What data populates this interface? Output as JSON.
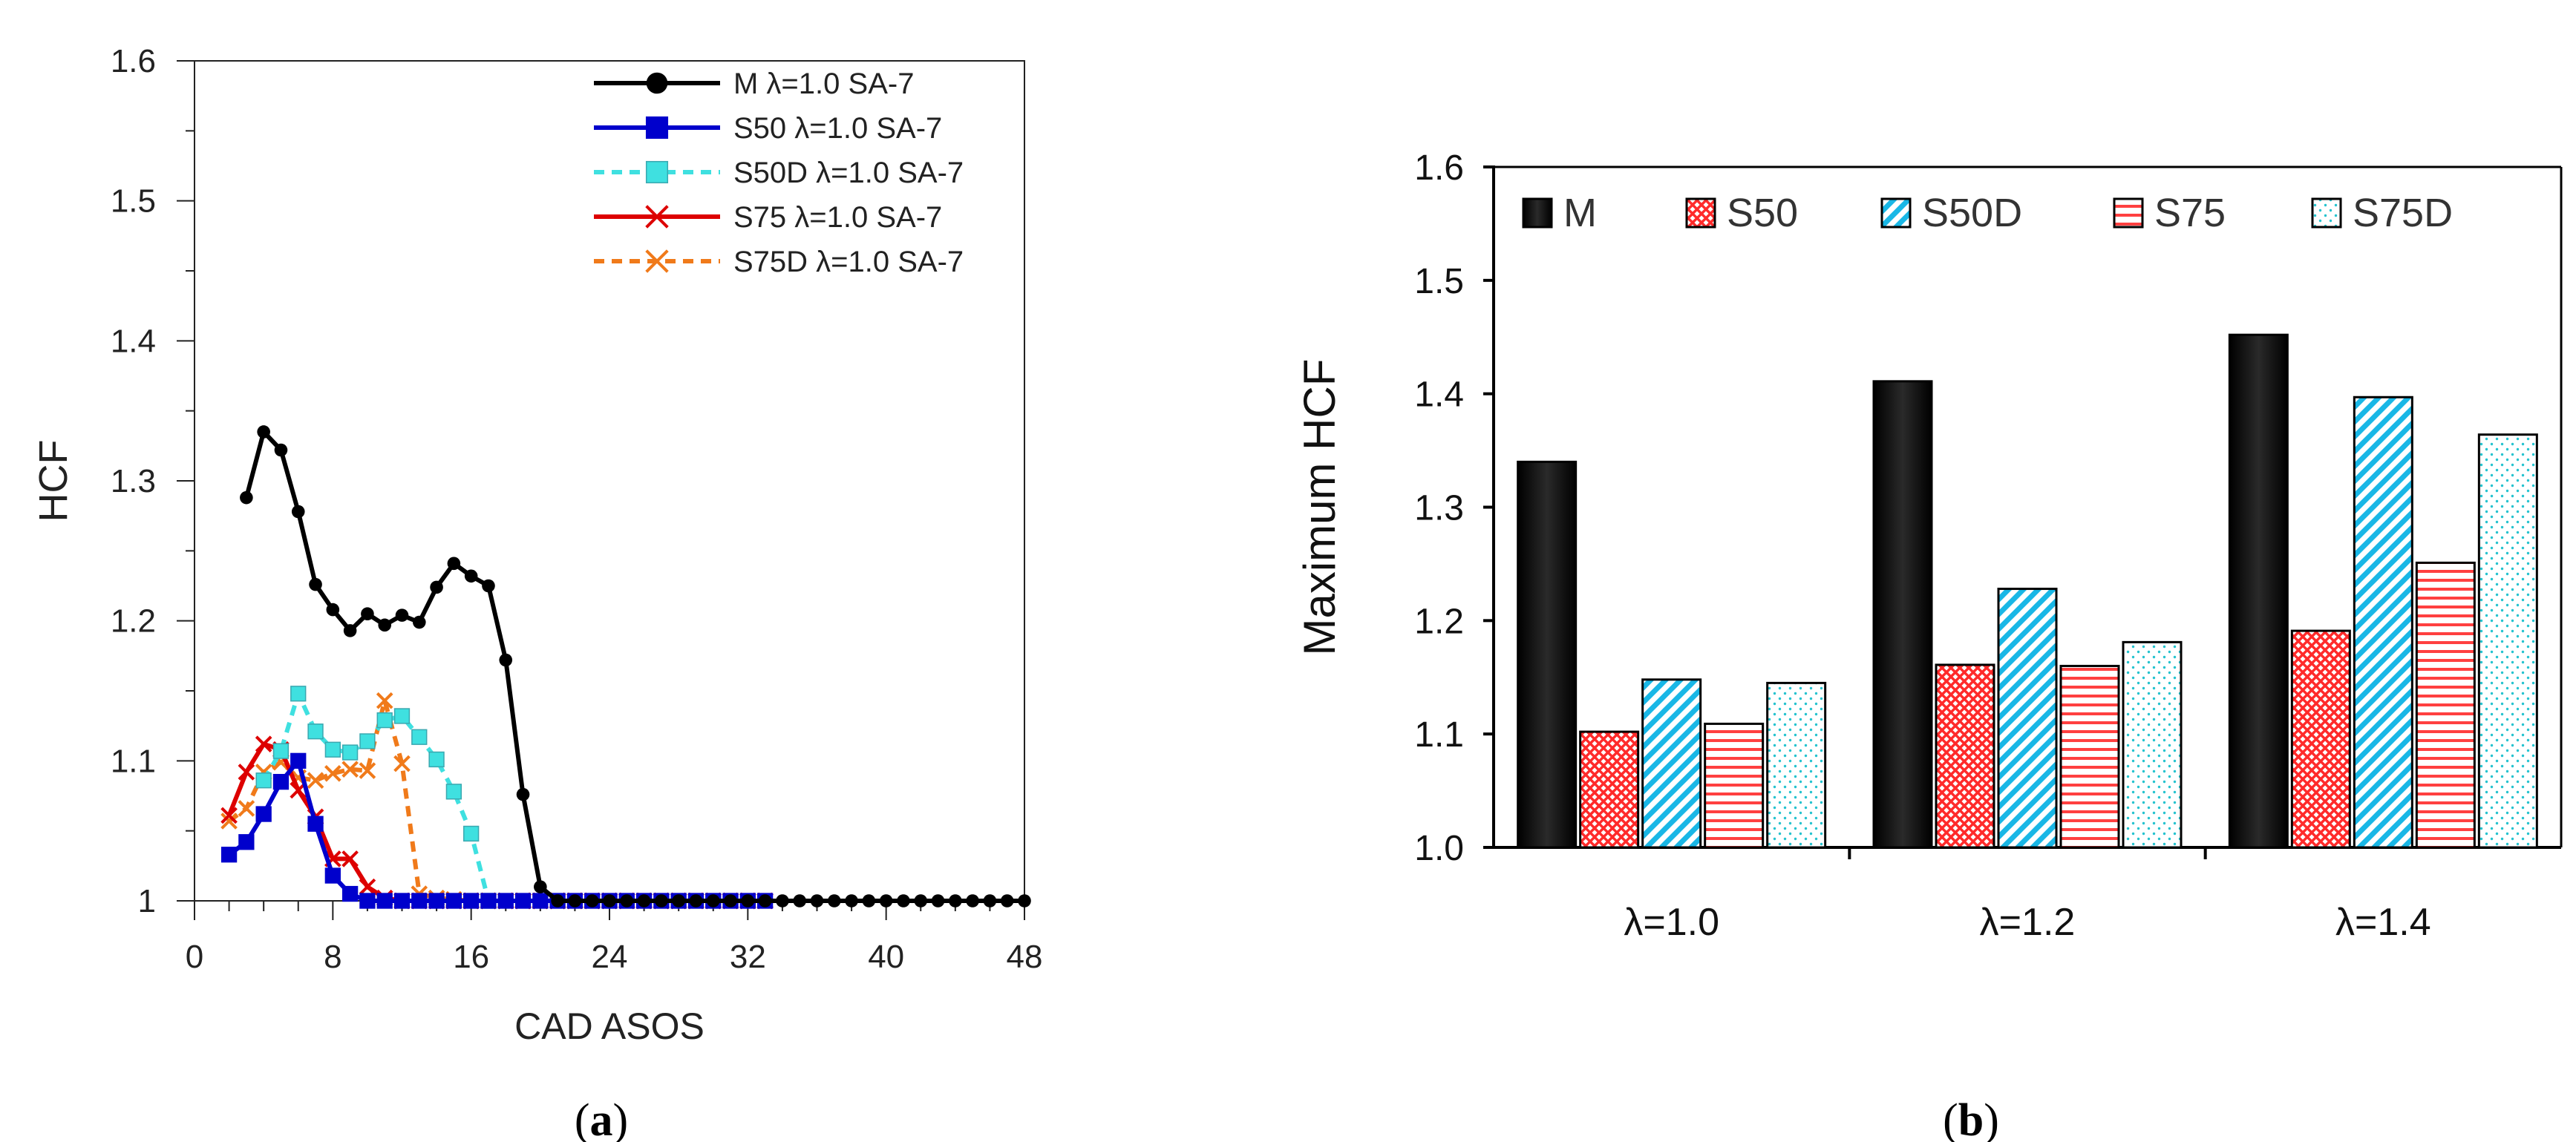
{
  "chart_data": [
    {
      "type": "line",
      "panel_label": "a",
      "xlabel": "CAD ASOS",
      "ylabel": "HCF",
      "xlim": [
        0,
        48
      ],
      "ylim": [
        1.0,
        1.6
      ],
      "xticks": [
        0,
        8,
        16,
        24,
        32,
        40,
        48
      ],
      "yticks": [
        1,
        1.1,
        1.2,
        1.3,
        1.4,
        1.5,
        1.6
      ],
      "ytick_labels": [
        "1",
        "1.1",
        "1.2",
        "1.3",
        "1.4",
        "1.5",
        "1.6"
      ],
      "legend_position": "top-right",
      "series": [
        {
          "name": "M λ=1.0 SA-7",
          "color": "#000000",
          "dash": "solid",
          "marker": "circle",
          "x": [
            3,
            4,
            5,
            6,
            7,
            8,
            9,
            10,
            11,
            12,
            13,
            14,
            15,
            16,
            17,
            18,
            19,
            20,
            21,
            22,
            23,
            24,
            25,
            26,
            27,
            28,
            29,
            30,
            31,
            32,
            33,
            34,
            35,
            36,
            37,
            38,
            39,
            40,
            41,
            42,
            43,
            44,
            45,
            46,
            47,
            48
          ],
          "y": [
            1.288,
            1.335,
            1.322,
            1.278,
            1.226,
            1.208,
            1.193,
            1.205,
            1.197,
            1.204,
            1.199,
            1.224,
            1.241,
            1.232,
            1.225,
            1.172,
            1.076,
            1.01,
            1,
            1,
            1,
            1,
            1,
            1,
            1,
            1,
            1,
            1,
            1,
            1,
            1,
            1,
            1,
            1,
            1,
            1,
            1,
            1,
            1,
            1,
            1,
            1,
            1,
            1,
            1,
            1
          ]
        },
        {
          "name": "S50 λ=1.0 SA-7",
          "color": "#0000cc",
          "dash": "solid",
          "marker": "square",
          "x": [
            2,
            3,
            4,
            5,
            6,
            7,
            8,
            9,
            10,
            11,
            12,
            13,
            14,
            15,
            16,
            17,
            18,
            19,
            20,
            21,
            22,
            23,
            24,
            25,
            26,
            27,
            28,
            29,
            30,
            31,
            32,
            33
          ],
          "y": [
            1.033,
            1.042,
            1.062,
            1.085,
            1.1,
            1.055,
            1.018,
            1.005,
            1,
            1,
            1,
            1,
            1,
            1,
            1,
            1,
            1,
            1,
            1,
            1,
            1,
            1,
            1,
            1,
            1,
            1,
            1,
            1,
            1,
            1,
            1,
            1
          ]
        },
        {
          "name": "S50D λ=1.0 SA-7",
          "color": "#3fe0e0",
          "dash": "dashed",
          "marker": "square",
          "x": [
            4,
            5,
            6,
            7,
            8,
            9,
            10,
            11,
            12,
            13,
            14,
            15,
            16,
            17
          ],
          "y": [
            1.086,
            1.107,
            1.148,
            1.121,
            1.108,
            1.106,
            1.114,
            1.129,
            1.132,
            1.117,
            1.101,
            1.078,
            1.048,
            1.0
          ]
        },
        {
          "name": "S75 λ=1.0 SA-7",
          "color": "#dd0000",
          "dash": "solid",
          "marker": "x",
          "x": [
            2,
            3,
            4,
            5,
            6,
            7,
            8,
            9,
            10,
            11,
            12,
            13,
            14,
            15,
            16,
            17,
            18,
            19,
            20,
            21,
            22,
            23,
            24,
            25,
            26,
            27,
            28,
            29,
            30,
            31,
            32,
            33
          ],
          "y": [
            1.061,
            1.092,
            1.112,
            1.108,
            1.079,
            1.06,
            1.03,
            1.03,
            1.01,
            1.002,
            1,
            1,
            1,
            1,
            1,
            1,
            1,
            1,
            1,
            1,
            1,
            1,
            1,
            1,
            1,
            1,
            1,
            1,
            1,
            1,
            1,
            1
          ]
        },
        {
          "name": "S75D λ=1.0 SA-7",
          "color": "#f07a1a",
          "dash": "dashed",
          "marker": "x",
          "x": [
            2,
            3,
            4,
            5,
            6,
            7,
            8,
            9,
            10,
            11,
            12,
            13,
            14,
            15,
            16,
            17,
            18,
            19,
            20,
            21,
            22
          ],
          "y": [
            1.057,
            1.066,
            1.092,
            1.099,
            1.088,
            1.086,
            1.091,
            1.094,
            1.093,
            1.143,
            1.098,
            1.005,
            1.002,
            1.001,
            1,
            1,
            1,
            1,
            1,
            1,
            1
          ]
        }
      ]
    },
    {
      "type": "bar",
      "panel_label": "b",
      "ylabel": "Maximum HCF",
      "categories": [
        "λ=1.0",
        "λ=1.2",
        "λ=1.4"
      ],
      "ylim": [
        1.0,
        1.6
      ],
      "yticks": [
        "1.0",
        "1.1",
        "1.2",
        "1.3",
        "1.4",
        "1.5",
        "1.6"
      ],
      "legend_position": "top",
      "series": [
        {
          "name": "M",
          "color": "#000000",
          "pattern": "solid",
          "values": [
            1.34,
            1.411,
            1.452
          ]
        },
        {
          "name": "S50",
          "color": "#ff3030",
          "pattern": "crosshatch",
          "values": [
            1.102,
            1.161,
            1.191
          ]
        },
        {
          "name": "S50D",
          "color": "#19b7e6",
          "pattern": "diagonal",
          "values": [
            1.148,
            1.228,
            1.397
          ]
        },
        {
          "name": "S75",
          "color": "#ff4040",
          "pattern": "horizontal",
          "values": [
            1.109,
            1.16,
            1.251
          ]
        },
        {
          "name": "S75D",
          "color": "#25c3cf",
          "pattern": "dots",
          "values": [
            1.145,
            1.181,
            1.364
          ]
        }
      ]
    }
  ]
}
